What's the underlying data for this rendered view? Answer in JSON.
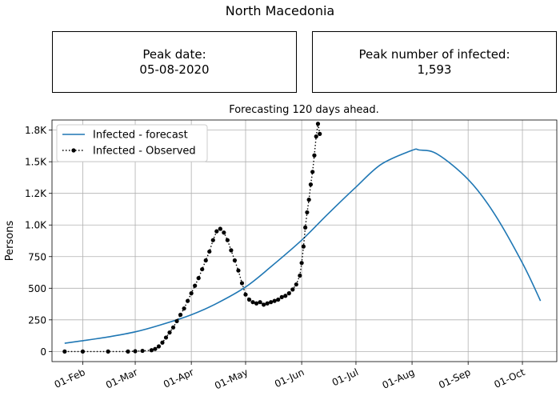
{
  "figure": {
    "title": "North Macedonia",
    "peak_date_label": "Peak date:",
    "peak_date_value": "05-08-2020",
    "peak_number_label": "Peak number of infected:",
    "peak_number_value": "1,593"
  },
  "colors": {
    "forecast": "#1f77b4",
    "observed": "#000000",
    "grid": "#b0b0b0"
  },
  "chart_data": {
    "type": "line",
    "title": "Forecasting 120 days ahead.",
    "xlabel": "",
    "ylabel": "Persons",
    "x_axis_type": "date",
    "xlim": [
      "2020-01-15",
      "2020-10-20"
    ],
    "ylim": [
      -80,
      1830
    ],
    "x_ticks": [
      {
        "date": "2020-02-01",
        "label": "01-Feb"
      },
      {
        "date": "2020-03-01",
        "label": "01-Mar"
      },
      {
        "date": "2020-04-01",
        "label": "01-Apr"
      },
      {
        "date": "2020-05-01",
        "label": "01-May"
      },
      {
        "date": "2020-06-01",
        "label": "01-Jun"
      },
      {
        "date": "2020-07-01",
        "label": "01-Jul"
      },
      {
        "date": "2020-08-01",
        "label": "01-Aug"
      },
      {
        "date": "2020-09-01",
        "label": "01-Sep"
      },
      {
        "date": "2020-10-01",
        "label": "01-Oct"
      }
    ],
    "y_ticks": [
      {
        "value": 0,
        "label": "0"
      },
      {
        "value": 250,
        "label": "250"
      },
      {
        "value": 500,
        "label": "500"
      },
      {
        "value": 750,
        "label": "750"
      },
      {
        "value": 1000,
        "label": "1.0K"
      },
      {
        "value": 1250,
        "label": "1.2K"
      },
      {
        "value": 1500,
        "label": "1.5K"
      },
      {
        "value": 1750,
        "label": "1.8K"
      }
    ],
    "grid": true,
    "legend_position": "top-left",
    "series": [
      {
        "name": "Infected - forecast",
        "style": "solid",
        "x": [
          "2020-01-22",
          "2020-02-01",
          "2020-02-15",
          "2020-03-01",
          "2020-03-15",
          "2020-04-01",
          "2020-04-15",
          "2020-05-01",
          "2020-05-15",
          "2020-06-01",
          "2020-06-15",
          "2020-07-01",
          "2020-07-15",
          "2020-08-01",
          "2020-08-05",
          "2020-08-15",
          "2020-09-01",
          "2020-09-15",
          "2020-10-01",
          "2020-10-11"
        ],
        "y": [
          65,
          85,
          115,
          155,
          210,
          290,
          380,
          510,
          670,
          880,
          1080,
          1300,
          1480,
          1590,
          1593,
          1560,
          1360,
          1100,
          700,
          400
        ]
      },
      {
        "name": "Infected - Observed",
        "style": "dotted-markers",
        "x": [
          "2020-01-22",
          "2020-02-01",
          "2020-02-15",
          "2020-02-26",
          "2020-03-01",
          "2020-03-05",
          "2020-03-10",
          "2020-03-12",
          "2020-03-14",
          "2020-03-16",
          "2020-03-18",
          "2020-03-20",
          "2020-03-22",
          "2020-03-24",
          "2020-03-26",
          "2020-03-28",
          "2020-03-30",
          "2020-04-01",
          "2020-04-03",
          "2020-04-05",
          "2020-04-07",
          "2020-04-09",
          "2020-04-11",
          "2020-04-13",
          "2020-04-15",
          "2020-04-17",
          "2020-04-19",
          "2020-04-21",
          "2020-04-23",
          "2020-04-25",
          "2020-04-27",
          "2020-04-29",
          "2020-05-01",
          "2020-05-03",
          "2020-05-05",
          "2020-05-07",
          "2020-05-09",
          "2020-05-11",
          "2020-05-13",
          "2020-05-15",
          "2020-05-17",
          "2020-05-19",
          "2020-05-21",
          "2020-05-23",
          "2020-05-25",
          "2020-05-27",
          "2020-05-29",
          "2020-05-31",
          "2020-06-01",
          "2020-06-02",
          "2020-06-03",
          "2020-06-04",
          "2020-06-05",
          "2020-06-06",
          "2020-06-07",
          "2020-06-08",
          "2020-06-09",
          "2020-06-10",
          "2020-06-11"
        ],
        "y": [
          0,
          0,
          0,
          0,
          2,
          5,
          10,
          20,
          40,
          70,
          110,
          150,
          190,
          240,
          290,
          340,
          400,
          460,
          520,
          580,
          650,
          720,
          790,
          880,
          950,
          970,
          940,
          880,
          800,
          720,
          640,
          540,
          450,
          410,
          390,
          380,
          390,
          370,
          380,
          390,
          400,
          410,
          430,
          440,
          460,
          490,
          530,
          600,
          700,
          830,
          980,
          1100,
          1200,
          1320,
          1420,
          1550,
          1700,
          1800,
          1720
        ]
      }
    ]
  }
}
